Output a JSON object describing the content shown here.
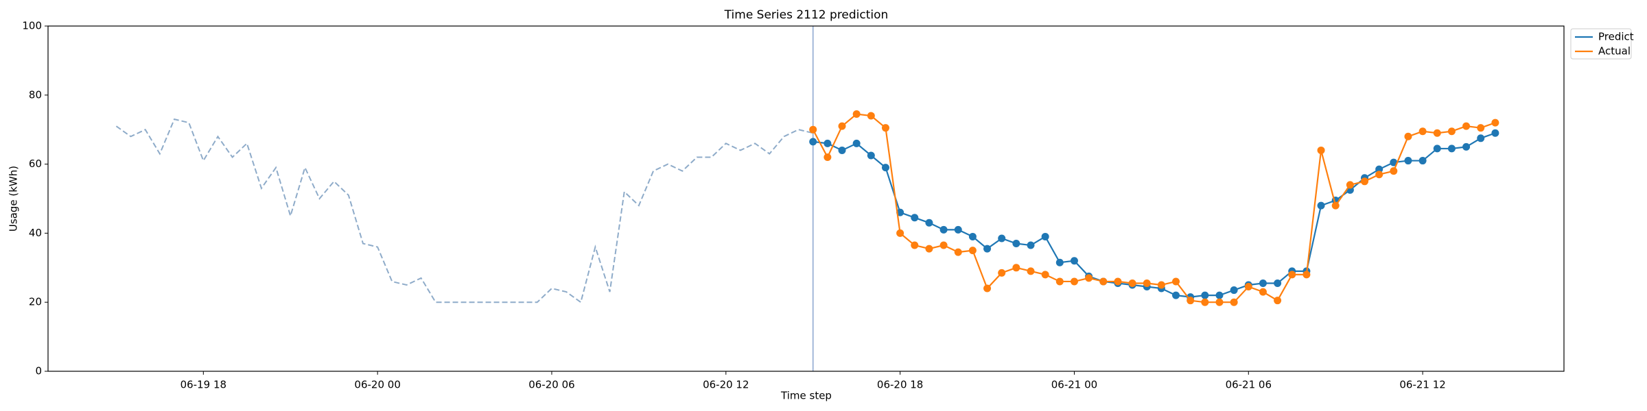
{
  "chart_data": {
    "type": "line",
    "title": "Time Series 2112 prediction",
    "xlabel": "Time step",
    "ylabel": "Usage (kWh)",
    "ylim": [
      0,
      100
    ],
    "yticks": [
      0,
      20,
      40,
      60,
      80,
      100
    ],
    "xlim": [
      "06-19 12:39",
      "06-21 16:52"
    ],
    "xticks": [
      {
        "value": "06-19 18:00",
        "label": "06-19 18"
      },
      {
        "value": "06-20 00:00",
        "label": "06-20 00"
      },
      {
        "value": "06-20 06:00",
        "label": "06-20 06"
      },
      {
        "value": "06-20 12:00",
        "label": "06-20 12"
      },
      {
        "value": "06-20 18:00",
        "label": "06-20 18"
      },
      {
        "value": "06-21 00:00",
        "label": "06-21 00"
      },
      {
        "value": "06-21 06:00",
        "label": "06-21 06"
      },
      {
        "value": "06-21 12:00",
        "label": "06-21 12"
      }
    ],
    "vline": "06-20 15:00",
    "vline_color": "#8aa6cf",
    "history": {
      "color": "#8eabc9",
      "x": [
        "06-19 15:00",
        "06-19 15:30",
        "06-19 16:00",
        "06-19 16:30",
        "06-19 17:00",
        "06-19 17:30",
        "06-19 18:00",
        "06-19 18:30",
        "06-19 19:00",
        "06-19 19:30",
        "06-19 20:00",
        "06-19 20:30",
        "06-19 21:00",
        "06-19 21:30",
        "06-19 22:00",
        "06-19 22:30",
        "06-19 23:00",
        "06-19 23:30",
        "06-20 00:00",
        "06-20 00:30",
        "06-20 01:00",
        "06-20 01:30",
        "06-20 02:00",
        "06-20 02:30",
        "06-20 03:00",
        "06-20 03:30",
        "06-20 04:00",
        "06-20 04:30",
        "06-20 05:00",
        "06-20 05:30",
        "06-20 06:00",
        "06-20 06:30",
        "06-20 07:00",
        "06-20 07:30",
        "06-20 08:00",
        "06-20 08:30",
        "06-20 09:00",
        "06-20 09:30",
        "06-20 10:00",
        "06-20 10:30",
        "06-20 11:00",
        "06-20 11:30",
        "06-20 12:00",
        "06-20 12:30",
        "06-20 13:00",
        "06-20 13:30",
        "06-20 14:00",
        "06-20 14:30",
        "06-20 15:00"
      ],
      "values": [
        71,
        68,
        70,
        63,
        73,
        72,
        61,
        68,
        62,
        66,
        53,
        59,
        45,
        59,
        50,
        55,
        51,
        37,
        36,
        26,
        25,
        27,
        20,
        20,
        20,
        20,
        20,
        20,
        20,
        20,
        24,
        23,
        20,
        36,
        23,
        52,
        48,
        58,
        60,
        58,
        62,
        62,
        66,
        64,
        66,
        63,
        68,
        70,
        69
      ]
    },
    "x": [
      "06-20 15:00",
      "06-20 15:30",
      "06-20 16:00",
      "06-20 16:30",
      "06-20 17:00",
      "06-20 17:30",
      "06-20 18:00",
      "06-20 18:30",
      "06-20 19:00",
      "06-20 19:30",
      "06-20 20:00",
      "06-20 20:30",
      "06-20 21:00",
      "06-20 21:30",
      "06-20 22:00",
      "06-20 22:30",
      "06-20 23:00",
      "06-20 23:30",
      "06-21 00:00",
      "06-21 00:30",
      "06-21 01:00",
      "06-21 01:30",
      "06-21 02:00",
      "06-21 02:30",
      "06-21 03:00",
      "06-21 03:30",
      "06-21 04:00",
      "06-21 04:30",
      "06-21 05:00",
      "06-21 05:30",
      "06-21 06:00",
      "06-21 06:30",
      "06-21 07:00",
      "06-21 07:30",
      "06-21 08:00",
      "06-21 08:30",
      "06-21 09:00",
      "06-21 09:30",
      "06-21 10:00",
      "06-21 10:30",
      "06-21 11:00",
      "06-21 11:30",
      "06-21 12:00",
      "06-21 12:30",
      "06-21 13:00",
      "06-21 13:30",
      "06-21 14:00",
      "06-21 14:30"
    ],
    "series": [
      {
        "name": "Predict",
        "color": "#1f77b4",
        "values": [
          66.5,
          66,
          64,
          66,
          62.5,
          59,
          46,
          44.5,
          43,
          41,
          41,
          39,
          35.5,
          38.5,
          37,
          36.5,
          39,
          31.5,
          32,
          27.5,
          26,
          25.5,
          25,
          24.5,
          24,
          22,
          21.5,
          22,
          22,
          23.5,
          25,
          25.5,
          25.5,
          29,
          29,
          48,
          49.5,
          52.5,
          56,
          58.5,
          60.5,
          61,
          61,
          64.5,
          64.5,
          65,
          67.5,
          69
        ]
      },
      {
        "name": "Actual",
        "color": "#ff7f0e",
        "values": [
          70,
          62,
          71,
          74.5,
          74,
          70.5,
          40,
          36.5,
          35.5,
          36.5,
          34.5,
          35,
          24,
          28.5,
          30,
          29,
          28,
          26,
          26,
          27,
          26,
          26,
          25.5,
          25.5,
          25,
          26,
          20.5,
          20,
          20,
          20,
          24.5,
          23,
          20.5,
          28,
          28,
          64,
          48,
          54,
          55,
          57,
          58,
          68,
          69.5,
          69,
          69.5,
          71,
          70.5,
          72
        ]
      }
    ],
    "legend": "upper right outside"
  }
}
